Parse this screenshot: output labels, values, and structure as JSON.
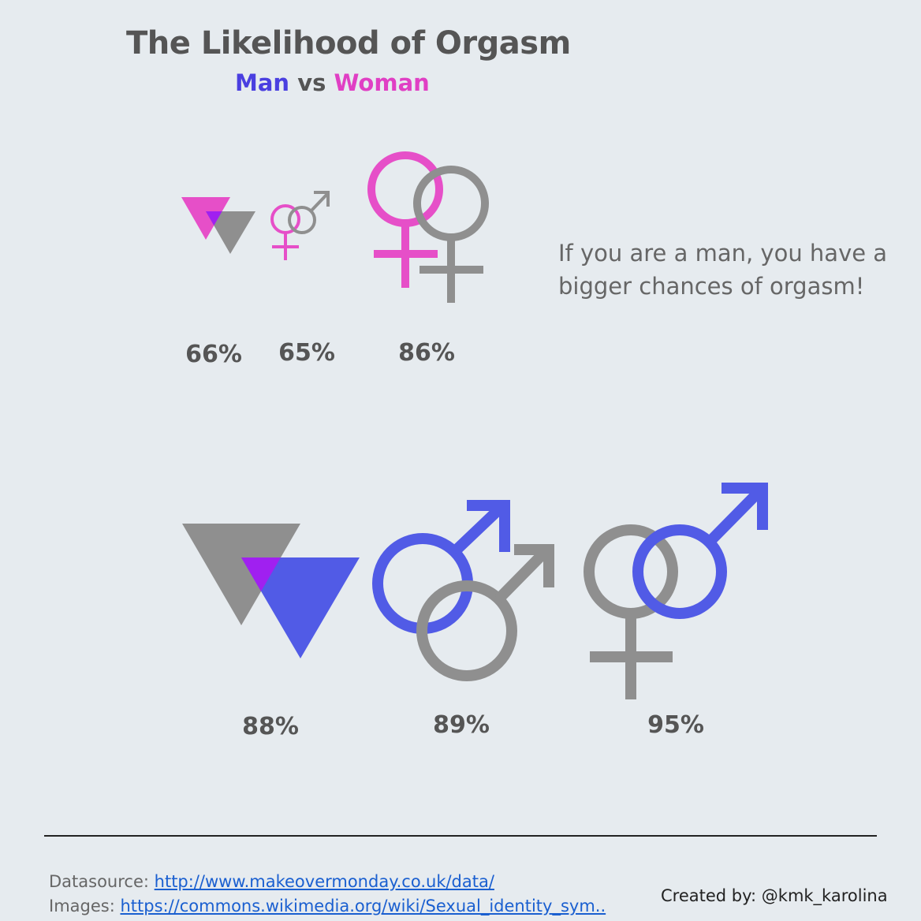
{
  "title": "The Likelihood of Orgasm",
  "subtitle": {
    "man": "Man",
    "vs": "vs",
    "woman": "Woman"
  },
  "note": "If you are a man, you have a bigger chances of orgasm!",
  "colors": {
    "man": "#515be6",
    "woman": "#e64fc8",
    "other": "#8f8f8f",
    "overlap": "#a020f0",
    "background": "#e6ebef"
  },
  "chart_data": {
    "type": "pictogram",
    "title": "The Likelihood of Orgasm",
    "groups": [
      {
        "gender": "Woman",
        "pairing": "lesbian/triangle pair",
        "icon": "triangles",
        "value": 66,
        "label": "66%"
      },
      {
        "gender": "Woman",
        "pairing": "woman with man",
        "icon": "female-male",
        "value": 65,
        "label": "65%"
      },
      {
        "gender": "Woman",
        "pairing": "woman with woman",
        "icon": "female-female",
        "value": 86,
        "label": "86%"
      },
      {
        "gender": "Man",
        "pairing": "gay/triangle pair",
        "icon": "triangles",
        "value": 88,
        "label": "88%"
      },
      {
        "gender": "Man",
        "pairing": "man with man",
        "icon": "male-male",
        "value": 89,
        "label": "89%"
      },
      {
        "gender": "Man",
        "pairing": "man with woman",
        "icon": "female-male",
        "value": 95,
        "label": "95%"
      }
    ]
  },
  "footer": {
    "datasource_label": "Datasource:",
    "datasource_link": "http://www.makeovermonday.co.uk/data/",
    "images_label": "Images:",
    "images_link": "https://commons.wikimedia.org/wiki/Sexual_identity_sym..",
    "credit_label": "Created by:",
    "credit_handle": "@kmk_karolina"
  }
}
